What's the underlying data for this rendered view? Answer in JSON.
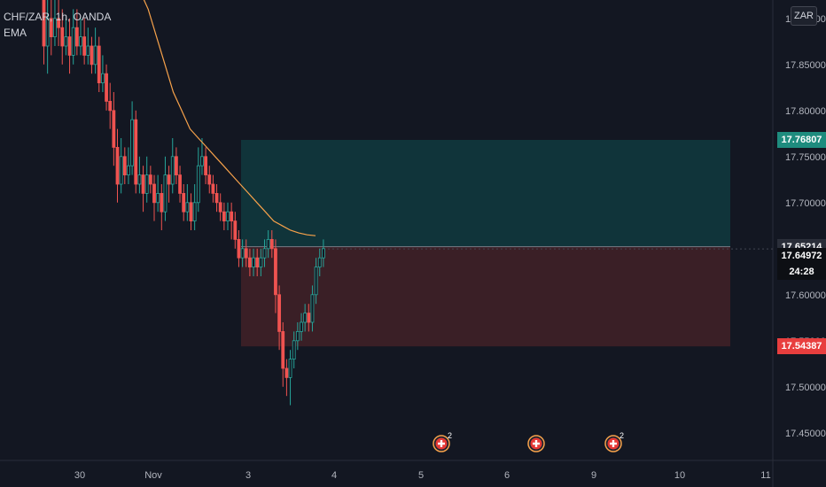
{
  "legend": {
    "symbol": "CHF/ZAR, 1h, OANDA",
    "indicator": "EMA"
  },
  "currency_button": "ZAR",
  "colors": {
    "background": "#131722",
    "up": "#26a69a",
    "down": "#ef5350",
    "ema": "#f7a24b",
    "target_zone": "#10343a",
    "stop_zone": "#3a1f26",
    "grid": "#1e222d"
  },
  "price_tags": {
    "target": {
      "label": "17.76807",
      "value": 17.76807,
      "color": "#1e8c7e"
    },
    "entry": {
      "label": "17.65214",
      "value": 17.65214,
      "color": "#2a2e39"
    },
    "last": {
      "label": "17.64972",
      "value": 17.64972,
      "color": "#0d0f14"
    },
    "countdown": "24:28",
    "stop": {
      "label": "17.54387",
      "value": 17.54387,
      "color": "#e83e3e"
    }
  },
  "calendar_events": [
    {
      "icon": "swiss-flag-icon",
      "badge": "2",
      "x_label": "5"
    },
    {
      "icon": "swiss-flag-icon",
      "badge": "",
      "x_label": "6"
    },
    {
      "icon": "swiss-flag-icon",
      "badge": "2",
      "x_label": "9"
    }
  ],
  "chart_data": {
    "type": "candlestick",
    "title": "CHF/ZAR, 1h, OANDA",
    "y_axis": {
      "ticks": [
        "17.90000",
        "17.85000",
        "17.80000",
        "17.75000",
        "17.70000",
        "17.65000",
        "17.60000",
        "17.55000",
        "17.50000",
        "17.45000"
      ],
      "tick_values": [
        17.9,
        17.85,
        17.8,
        17.75,
        17.7,
        17.65,
        17.6,
        17.55,
        17.5,
        17.45
      ],
      "range": [
        17.42,
        17.92
      ]
    },
    "x_axis": {
      "ticks": [
        "30",
        "Nov",
        "3",
        "4",
        "5",
        "6",
        "9",
        "10",
        "11"
      ]
    },
    "position": {
      "type": "long",
      "entry": 17.65214,
      "target": 17.76807,
      "stop": 17.54387
    },
    "candles": [
      [
        17.93,
        17.87,
        17.95,
        17.85
      ],
      [
        17.87,
        17.9,
        17.92,
        17.84
      ],
      [
        17.9,
        17.88,
        17.92,
        17.86
      ],
      [
        17.88,
        17.9,
        17.93,
        17.87
      ],
      [
        17.9,
        17.89,
        17.92,
        17.87
      ],
      [
        17.89,
        17.87,
        17.91,
        17.85
      ],
      [
        17.87,
        17.88,
        17.9,
        17.86
      ],
      [
        17.88,
        17.86,
        17.9,
        17.84
      ],
      [
        17.86,
        17.89,
        17.91,
        17.85
      ],
      [
        17.89,
        17.87,
        17.91,
        17.86
      ],
      [
        17.87,
        17.88,
        17.9,
        17.86
      ],
      [
        17.88,
        17.86,
        17.9,
        17.85
      ],
      [
        17.86,
        17.87,
        17.89,
        17.85
      ],
      [
        17.87,
        17.85,
        17.88,
        17.84
      ],
      [
        17.85,
        17.87,
        17.89,
        17.84
      ],
      [
        17.87,
        17.83,
        17.88,
        17.82
      ],
      [
        17.83,
        17.84,
        17.86,
        17.82
      ],
      [
        17.84,
        17.81,
        17.85,
        17.8
      ],
      [
        17.81,
        17.8,
        17.83,
        17.78
      ],
      [
        17.8,
        17.76,
        17.82,
        17.74
      ],
      [
        17.76,
        17.72,
        17.78,
        17.7
      ],
      [
        17.72,
        17.75,
        17.77,
        17.71
      ],
      [
        17.75,
        17.73,
        17.76,
        17.72
      ],
      [
        17.73,
        17.74,
        17.76,
        17.72
      ],
      [
        17.74,
        17.79,
        17.81,
        17.73
      ],
      [
        17.79,
        17.72,
        17.8,
        17.71
      ],
      [
        17.72,
        17.73,
        17.75,
        17.71
      ],
      [
        17.73,
        17.71,
        17.74,
        17.69
      ],
      [
        17.71,
        17.73,
        17.75,
        17.7
      ],
      [
        17.73,
        17.72,
        17.74,
        17.71
      ],
      [
        17.72,
        17.7,
        17.73,
        17.68
      ],
      [
        17.7,
        17.71,
        17.73,
        17.69
      ],
      [
        17.71,
        17.69,
        17.72,
        17.67
      ],
      [
        17.69,
        17.73,
        17.75,
        17.68
      ],
      [
        17.73,
        17.72,
        17.74,
        17.7
      ],
      [
        17.72,
        17.75,
        17.77,
        17.71
      ],
      [
        17.75,
        17.73,
        17.76,
        17.72
      ],
      [
        17.73,
        17.71,
        17.74,
        17.7
      ],
      [
        17.71,
        17.69,
        17.72,
        17.68
      ],
      [
        17.69,
        17.7,
        17.72,
        17.68
      ],
      [
        17.7,
        17.68,
        17.71,
        17.67
      ],
      [
        17.68,
        17.7,
        17.72,
        17.67
      ],
      [
        17.7,
        17.74,
        17.76,
        17.69
      ],
      [
        17.74,
        17.75,
        17.77,
        17.73
      ],
      [
        17.75,
        17.73,
        17.76,
        17.72
      ],
      [
        17.73,
        17.72,
        17.74,
        17.71
      ],
      [
        17.72,
        17.71,
        17.73,
        17.7
      ],
      [
        17.71,
        17.7,
        17.72,
        17.69
      ],
      [
        17.7,
        17.69,
        17.71,
        17.68
      ],
      [
        17.69,
        17.68,
        17.7,
        17.67
      ],
      [
        17.68,
        17.69,
        17.7,
        17.67
      ],
      [
        17.69,
        17.68,
        17.7,
        17.66
      ],
      [
        17.68,
        17.66,
        17.69,
        17.65
      ],
      [
        17.66,
        17.64,
        17.67,
        17.63
      ],
      [
        17.64,
        17.65,
        17.66,
        17.63
      ],
      [
        17.65,
        17.64,
        17.66,
        17.63
      ],
      [
        17.64,
        17.63,
        17.65,
        17.62
      ],
      [
        17.63,
        17.64,
        17.65,
        17.62
      ],
      [
        17.64,
        17.63,
        17.65,
        17.62
      ],
      [
        17.63,
        17.64,
        17.65,
        17.62
      ],
      [
        17.64,
        17.65,
        17.66,
        17.63
      ],
      [
        17.65,
        17.66,
        17.67,
        17.64
      ],
      [
        17.66,
        17.65,
        17.67,
        17.64
      ],
      [
        17.65,
        17.6,
        17.66,
        17.58
      ],
      [
        17.6,
        17.56,
        17.61,
        17.54
      ],
      [
        17.56,
        17.52,
        17.57,
        17.5
      ],
      [
        17.52,
        17.51,
        17.53,
        17.49
      ],
      [
        17.51,
        17.53,
        17.54,
        17.48
      ],
      [
        17.53,
        17.55,
        17.56,
        17.52
      ],
      [
        17.55,
        17.56,
        17.57,
        17.54
      ],
      [
        17.56,
        17.57,
        17.58,
        17.55
      ],
      [
        17.57,
        17.58,
        17.59,
        17.56
      ],
      [
        17.58,
        17.57,
        17.59,
        17.56
      ],
      [
        17.57,
        17.6,
        17.61,
        17.56
      ],
      [
        17.6,
        17.63,
        17.64,
        17.59
      ],
      [
        17.63,
        17.64,
        17.65,
        17.62
      ],
      [
        17.64,
        17.65,
        17.66,
        17.63
      ]
    ],
    "ema": [
      17.98,
      17.97,
      17.96,
      17.95,
      17.93,
      17.91,
      17.88,
      17.85,
      17.82,
      17.8,
      17.78,
      17.77,
      17.76,
      17.75,
      17.74,
      17.73,
      17.72,
      17.71,
      17.7,
      17.69,
      17.68,
      17.675,
      17.67,
      17.667,
      17.665,
      17.664
    ]
  }
}
